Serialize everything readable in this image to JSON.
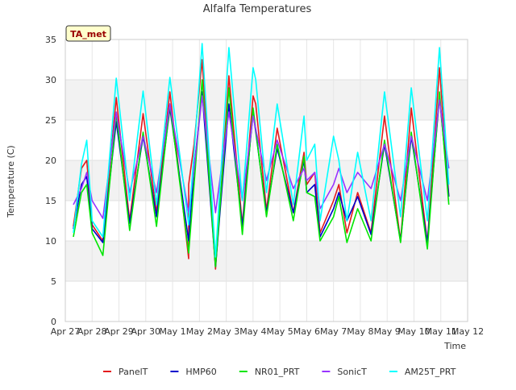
{
  "chart_data": {
    "type": "line",
    "title": "Alfalfa Temperatures",
    "xlabel": "Time",
    "ylabel": "Temperature (C)",
    "badge": "TA_met",
    "xlim": [
      0,
      15
    ],
    "ylim": [
      0,
      35
    ],
    "yticks": [
      0,
      5,
      10,
      15,
      20,
      25,
      30,
      35
    ],
    "xticks": [
      {
        "x": 0,
        "label": "Apr 27"
      },
      {
        "x": 1,
        "label": "Apr 28"
      },
      {
        "x": 2,
        "label": "Apr 29"
      },
      {
        "x": 3,
        "label": "Apr 30"
      },
      {
        "x": 4,
        "label": "May 1"
      },
      {
        "x": 5,
        "label": "May 2"
      },
      {
        "x": 6,
        "label": "May 3"
      },
      {
        "x": 7,
        "label": "May 4"
      },
      {
        "x": 8,
        "label": "May 5"
      },
      {
        "x": 9,
        "label": "May 6"
      },
      {
        "x": 10,
        "label": "May 7"
      },
      {
        "x": 11,
        "label": "May 8"
      },
      {
        "x": 12,
        "label": "May 9"
      },
      {
        "x": 13,
        "label": "May 10"
      },
      {
        "x": 14,
        "label": "May 11"
      },
      {
        "x": 15,
        "label": "May 12"
      }
    ],
    "grid": true,
    "legend_position": "bottom",
    "series": [
      {
        "name": "PanelT",
        "color": "#e41a1c",
        "points": [
          [
            0.3,
            11.8
          ],
          [
            0.6,
            19
          ],
          [
            0.8,
            20
          ],
          [
            1.0,
            12
          ],
          [
            1.4,
            10
          ],
          [
            1.9,
            27.8
          ],
          [
            2.4,
            12.5
          ],
          [
            2.9,
            25.8
          ],
          [
            3.4,
            13.5
          ],
          [
            3.9,
            28.5
          ],
          [
            4.6,
            7.8
          ],
          [
            4.6,
            17
          ],
          [
            4.8,
            22
          ],
          [
            5.1,
            32.5
          ],
          [
            5.6,
            6.5
          ],
          [
            6.1,
            30.5
          ],
          [
            6.6,
            12
          ],
          [
            7.0,
            28
          ],
          [
            7.1,
            27
          ],
          [
            7.5,
            13.8
          ],
          [
            7.9,
            24
          ],
          [
            8.5,
            13.5
          ],
          [
            8.9,
            21
          ],
          [
            9.0,
            17
          ],
          [
            9.3,
            18.5
          ],
          [
            9.5,
            11
          ],
          [
            10.0,
            15
          ],
          [
            10.2,
            17
          ],
          [
            10.5,
            11
          ],
          [
            10.9,
            16
          ],
          [
            11.4,
            11
          ],
          [
            11.9,
            25.5
          ],
          [
            12.5,
            10
          ],
          [
            12.9,
            26.5
          ],
          [
            13.5,
            9.8
          ],
          [
            13.95,
            31.5
          ],
          [
            14.3,
            15.5
          ]
        ]
      },
      {
        "name": "HMP60",
        "color": "#0000cc",
        "points": [
          [
            0.3,
            11.5
          ],
          [
            0.6,
            17
          ],
          [
            0.8,
            18
          ],
          [
            1.0,
            11.5
          ],
          [
            1.4,
            9.8
          ],
          [
            1.9,
            24.8
          ],
          [
            2.4,
            12.2
          ],
          [
            2.9,
            23
          ],
          [
            3.4,
            13
          ],
          [
            3.9,
            26.5
          ],
          [
            4.6,
            10
          ],
          [
            4.8,
            19
          ],
          [
            5.1,
            28.5
          ],
          [
            5.6,
            6.8
          ],
          [
            6.1,
            27
          ],
          [
            6.6,
            11.8
          ],
          [
            7.0,
            26
          ],
          [
            7.5,
            13.5
          ],
          [
            7.9,
            21.5
          ],
          [
            8.5,
            13.5
          ],
          [
            8.9,
            20
          ],
          [
            9.0,
            16
          ],
          [
            9.3,
            17
          ],
          [
            9.5,
            10.5
          ],
          [
            10.0,
            14
          ],
          [
            10.2,
            16
          ],
          [
            10.5,
            12.5
          ],
          [
            10.9,
            15.5
          ],
          [
            11.4,
            10.8
          ],
          [
            11.9,
            22
          ],
          [
            12.5,
            10
          ],
          [
            12.9,
            23
          ],
          [
            13.5,
            9.8
          ],
          [
            13.95,
            28
          ],
          [
            14.3,
            15.5
          ]
        ]
      },
      {
        "name": "NR01_PRT",
        "color": "#00e600",
        "points": [
          [
            0.3,
            10.5
          ],
          [
            0.6,
            16
          ],
          [
            0.8,
            17
          ],
          [
            1.0,
            11
          ],
          [
            1.4,
            8.2
          ],
          [
            1.9,
            25.8
          ],
          [
            2.4,
            11.3
          ],
          [
            2.9,
            23.5
          ],
          [
            3.4,
            11.8
          ],
          [
            3.9,
            27
          ],
          [
            4.6,
            8.5
          ],
          [
            4.8,
            17
          ],
          [
            5.1,
            30
          ],
          [
            5.6,
            6.8
          ],
          [
            6.1,
            29
          ],
          [
            6.6,
            10.8
          ],
          [
            7.0,
            26.5
          ],
          [
            7.5,
            13
          ],
          [
            7.9,
            22
          ],
          [
            8.5,
            12.5
          ],
          [
            8.9,
            20.5
          ],
          [
            9.0,
            16
          ],
          [
            9.3,
            15.5
          ],
          [
            9.5,
            10
          ],
          [
            10.0,
            13
          ],
          [
            10.2,
            15.5
          ],
          [
            10.5,
            9.8
          ],
          [
            10.9,
            14
          ],
          [
            11.4,
            10
          ],
          [
            11.9,
            22.5
          ],
          [
            12.5,
            9.8
          ],
          [
            12.9,
            23.5
          ],
          [
            13.5,
            9
          ],
          [
            13.95,
            28.5
          ],
          [
            14.3,
            14.5
          ]
        ]
      },
      {
        "name": "SonicT",
        "color": "#9933ff",
        "points": [
          [
            0.3,
            14.5
          ],
          [
            0.6,
            16.5
          ],
          [
            0.8,
            18.5
          ],
          [
            1.0,
            15
          ],
          [
            1.4,
            12.8
          ],
          [
            1.9,
            26
          ],
          [
            2.4,
            16
          ],
          [
            2.9,
            23
          ],
          [
            3.4,
            16
          ],
          [
            3.9,
            27
          ],
          [
            4.6,
            13.5
          ],
          [
            4.8,
            19
          ],
          [
            5.1,
            28
          ],
          [
            5.6,
            13.5
          ],
          [
            6.1,
            26
          ],
          [
            6.6,
            15
          ],
          [
            7.0,
            25.5
          ],
          [
            7.5,
            17.5
          ],
          [
            7.9,
            22.5
          ],
          [
            8.5,
            16.5
          ],
          [
            8.9,
            19
          ],
          [
            9.0,
            17.5
          ],
          [
            9.3,
            18.5
          ],
          [
            9.5,
            14
          ],
          [
            10.0,
            17
          ],
          [
            10.2,
            19
          ],
          [
            10.5,
            16
          ],
          [
            10.9,
            18.5
          ],
          [
            11.4,
            16.5
          ],
          [
            11.9,
            22
          ],
          [
            12.5,
            15
          ],
          [
            12.9,
            23
          ],
          [
            13.5,
            15
          ],
          [
            13.95,
            27.5
          ],
          [
            14.3,
            19
          ]
        ]
      },
      {
        "name": "AM25T_PRT",
        "color": "#00ffff",
        "points": [
          [
            0.3,
            11
          ],
          [
            0.6,
            19.5
          ],
          [
            0.8,
            22.5
          ],
          [
            1.0,
            12.5
          ],
          [
            1.4,
            10.5
          ],
          [
            1.9,
            30.2
          ],
          [
            2.4,
            15
          ],
          [
            2.9,
            28.6
          ],
          [
            3.4,
            14.5
          ],
          [
            3.9,
            30.3
          ],
          [
            4.6,
            12
          ],
          [
            4.8,
            21
          ],
          [
            5.1,
            34.5
          ],
          [
            5.6,
            8
          ],
          [
            6.1,
            34
          ],
          [
            6.6,
            15
          ],
          [
            7.0,
            31.5
          ],
          [
            7.1,
            30
          ],
          [
            7.5,
            16
          ],
          [
            7.9,
            27
          ],
          [
            8.5,
            14.5
          ],
          [
            8.9,
            25.5
          ],
          [
            9.0,
            20
          ],
          [
            9.3,
            22
          ],
          [
            9.5,
            12.5
          ],
          [
            10.0,
            23
          ],
          [
            10.2,
            20
          ],
          [
            10.5,
            12.5
          ],
          [
            10.9,
            21
          ],
          [
            11.4,
            12.5
          ],
          [
            11.9,
            28.5
          ],
          [
            12.5,
            13
          ],
          [
            12.9,
            29
          ],
          [
            13.5,
            12.5
          ],
          [
            13.95,
            34
          ],
          [
            14.3,
            17
          ]
        ]
      }
    ]
  }
}
